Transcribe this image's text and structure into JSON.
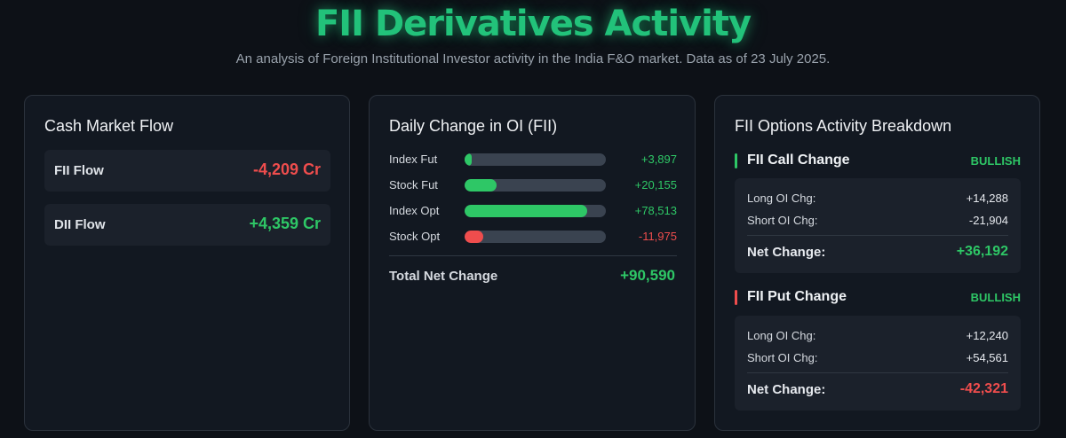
{
  "header": {
    "title": "FII Derivatives Activity",
    "subtitle": "An analysis of Foreign Institutional Investor activity in the India F&O market. Data as of 23 July 2025."
  },
  "colors": {
    "accent": "#22c27a",
    "positive": "#2ec766",
    "negative": "#ef4d4d"
  },
  "cash_flow": {
    "title": "Cash Market Flow",
    "items": [
      {
        "label": "FII Flow",
        "value": "-4,209 Cr"
      },
      {
        "label": "DII Flow",
        "value": "+4,359 Cr"
      }
    ]
  },
  "oi_change": {
    "title": "Daily Change in OI (FII)",
    "rows": [
      {
        "label": "Index Fut",
        "value": "+3,897",
        "amount": 3897
      },
      {
        "label": "Stock Fut",
        "value": "+20,155",
        "amount": 20155
      },
      {
        "label": "Index Opt",
        "value": "+78,513",
        "amount": 78513
      },
      {
        "label": "Stock Opt",
        "value": "-11,975",
        "amount": -11975
      }
    ],
    "total_label": "Total Net Change",
    "total_value": "+90,590"
  },
  "options": {
    "title": "FII Options Activity Breakdown",
    "call": {
      "title": "FII Call Change",
      "badge": "BULLISH",
      "long_label": "Long OI Chg:",
      "long_value": "+14,288",
      "short_label": "Short OI Chg:",
      "short_value": "-21,904",
      "net_label": "Net Change:",
      "net_value": "+36,192"
    },
    "put": {
      "title": "FII Put Change",
      "badge": "BULLISH",
      "long_label": "Long OI Chg:",
      "long_value": "+12,240",
      "short_label": "Short OI Chg:",
      "short_value": "+54,561",
      "net_label": "Net Change:",
      "net_value": "-42,321"
    }
  }
}
